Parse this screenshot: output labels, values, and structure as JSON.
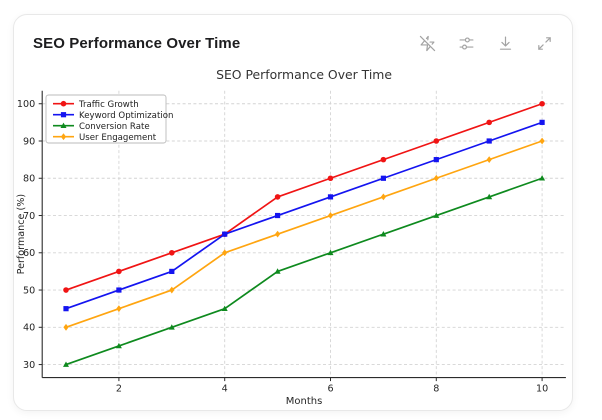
{
  "card": {
    "title": "SEO Performance Over Time",
    "toolbar": {
      "icons": [
        "zap-off",
        "sliders",
        "download",
        "expand"
      ]
    }
  },
  "colors": {
    "card_border": "#e8e8e8",
    "icon_gray": "#a3a3a3",
    "grid": "#d4d4d4",
    "spine": "#2b2b2b",
    "text_dark": "#262626"
  },
  "chart_data": {
    "type": "line",
    "title": "SEO Performance Over Time",
    "xlabel": "Months",
    "ylabel": "Performance (%)",
    "x": [
      1,
      2,
      3,
      4,
      5,
      6,
      7,
      8,
      9,
      10
    ],
    "xticks": [
      2,
      4,
      6,
      8,
      10
    ],
    "yticks": [
      30,
      40,
      50,
      60,
      70,
      80,
      90,
      100
    ],
    "xlim": [
      0.55,
      10.45
    ],
    "ylim": [
      26.5,
      103.5
    ],
    "grid": true,
    "grid_style": "dashed",
    "legend_position": "upper-left",
    "series": [
      {
        "name": "Traffic Growth",
        "color": "#f01414",
        "marker": "circle",
        "values": [
          50,
          55,
          60,
          65,
          75,
          80,
          85,
          90,
          95,
          100
        ]
      },
      {
        "name": "Keyword Optimization",
        "color": "#1414f0",
        "marker": "square",
        "values": [
          45,
          50,
          55,
          65,
          70,
          75,
          80,
          85,
          90,
          95
        ]
      },
      {
        "name": "Conversion Rate",
        "color": "#0e8a1e",
        "marker": "triangle",
        "values": [
          30,
          35,
          40,
          45,
          55,
          60,
          65,
          70,
          75,
          80
        ]
      },
      {
        "name": "User Engagement",
        "color": "#ffa510",
        "marker": "diamond",
        "values": [
          40,
          45,
          50,
          60,
          65,
          70,
          75,
          80,
          85,
          90
        ]
      }
    ]
  }
}
